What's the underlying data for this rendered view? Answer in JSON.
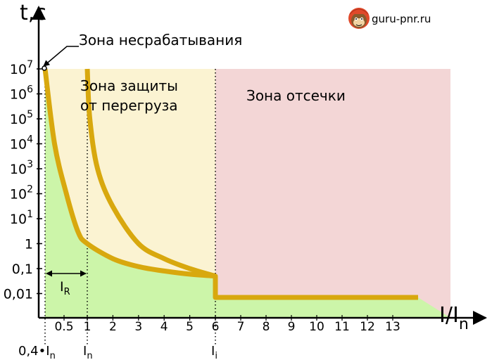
{
  "watermark": {
    "text": "guru-pnr.ru",
    "icon": "monkey-mascot-icon"
  },
  "chart_data": {
    "type": "line",
    "title": "",
    "ylabel": "t,c",
    "xlabel_main": "I/I",
    "xlabel_sub": "n",
    "y_ticks": [
      "10^7",
      "10^6",
      "10^5",
      "10^4",
      "10^3",
      "10^2",
      "10^1",
      "1",
      "0,1",
      "0,01"
    ],
    "x_ticks": [
      "0.5",
      "1",
      "2",
      "3",
      "4",
      "5",
      "6",
      "7",
      "8",
      "9",
      "10",
      "11",
      "12",
      "13"
    ],
    "zones": [
      {
        "name": "no_trip",
        "label": "Зона несрабатывания",
        "color": "#ccf5a9"
      },
      {
        "name": "overload",
        "label_line1": "Зона защиты",
        "label_line2": "от перегруза",
        "color": "#fbf3d2"
      },
      {
        "name": "cutoff",
        "label": "Зона отсечки",
        "color": "#f3d6d6"
      }
    ],
    "curve_color": "#d8a80e",
    "series": [
      {
        "key": "min_trip",
        "points": [
          [
            0.4,
            10000000
          ],
          [
            0.45,
            10000
          ],
          [
            0.55,
            100
          ],
          [
            0.8,
            3
          ],
          [
            1,
            1
          ],
          [
            2,
            0.25
          ],
          [
            3,
            0.12
          ],
          [
            4,
            0.08
          ],
          [
            5,
            0.06
          ],
          [
            6,
            0.05
          ],
          [
            6,
            0.007
          ],
          [
            14,
            0.007
          ]
        ]
      },
      {
        "key": "max_trip",
        "points": [
          [
            1,
            10000000
          ],
          [
            1.1,
            100000
          ],
          [
            1.4,
            1000
          ],
          [
            2,
            30
          ],
          [
            3,
            1
          ],
          [
            4,
            0.25
          ],
          [
            5,
            0.1
          ],
          [
            6,
            0.05
          ]
        ]
      }
    ],
    "markers": [
      {
        "label": "0,4•I",
        "sub": "n",
        "x": 0.4
      },
      {
        "label": "I",
        "sub": "n",
        "x": 1
      },
      {
        "label": "I",
        "sub": "i",
        "x": 6
      }
    ],
    "range_annotation": {
      "label": "I",
      "sub": "R",
      "from": 0.4,
      "to": 1
    }
  }
}
